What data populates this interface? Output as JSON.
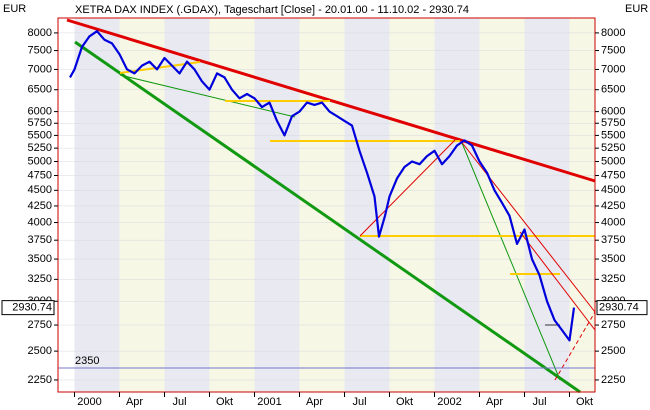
{
  "chart_data": {
    "type": "line",
    "title": "XETRA DAX INDEX (.GDAX), Tageschart [Close] - 20.01.00 - 11.10.02 - 2930.74",
    "y_unit_left": "EUR",
    "y_unit_right": "EUR",
    "log_scale": true,
    "x": [
      -0.3,
      0,
      0.5,
      1,
      1.5,
      2,
      2.5,
      3,
      3.5,
      4,
      4.5,
      5,
      5.5,
      6,
      6.5,
      7,
      7.5,
      8,
      8.5,
      9,
      9.5,
      10,
      10.5,
      11,
      11.5,
      12,
      12.5,
      13,
      13.5,
      14,
      14.5,
      15,
      15.5,
      16,
      16.5,
      17,
      17.5,
      18,
      18.5,
      19,
      19.5,
      20,
      20.3,
      20.7,
      21,
      21.5,
      22,
      22.5,
      23,
      23.5,
      24,
      24.5,
      25,
      25.5,
      26,
      26.5,
      27,
      27.5,
      28,
      28.5,
      29,
      29.5,
      30,
      30.5,
      31,
      31.5,
      32,
      32.5,
      33,
      33.3
    ],
    "series": [
      {
        "name": "XETRA DAX INDEX",
        "color": "#0000dd",
        "values": [
          6800,
          7000,
          7600,
          7900,
          8050,
          7800,
          7700,
          7400,
          7000,
          6900,
          7100,
          7200,
          7000,
          7300,
          7100,
          6900,
          7200,
          7000,
          6700,
          6500,
          6900,
          6800,
          6500,
          6300,
          6400,
          6300,
          6100,
          6200,
          5800,
          5500,
          5900,
          6000,
          6200,
          6150,
          6200,
          6000,
          5900,
          5800,
          5700,
          5200,
          4800,
          4400,
          3800,
          4100,
          4400,
          4700,
          4900,
          5000,
          4950,
          5100,
          5200,
          4950,
          5100,
          5300,
          5400,
          5300,
          5000,
          4800,
          4500,
          4300,
          4100,
          3700,
          3900,
          3500,
          3300,
          3000,
          2800,
          2700,
          2600,
          2930.74
        ]
      }
    ],
    "xlim": [
      -1.1,
      34.7
    ],
    "xticks": [
      {
        "value": 0,
        "label": "2000"
      },
      {
        "value": 3,
        "label": "Apr"
      },
      {
        "value": 6,
        "label": "Jul"
      },
      {
        "value": 9,
        "label": "Okt"
      },
      {
        "value": 12,
        "label": "2001"
      },
      {
        "value": 15,
        "label": "Apr"
      },
      {
        "value": 18,
        "label": "Jul"
      },
      {
        "value": 21,
        "label": "Okt"
      },
      {
        "value": 24,
        "label": "2002"
      },
      {
        "value": 27,
        "label": "Apr"
      },
      {
        "value": 30,
        "label": "Jul"
      },
      {
        "value": 33,
        "label": "Okt"
      }
    ],
    "ylim": [
      2153,
      8448
    ],
    "yticks": [
      8000,
      7500,
      7000,
      6500,
      6000,
      5750,
      5500,
      5250,
      5000,
      4750,
      4500,
      4250,
      4000,
      3750,
      3500,
      3250,
      3000,
      2750,
      2500,
      2250
    ],
    "hline": 2350,
    "last_value": 2930.74
  }
}
